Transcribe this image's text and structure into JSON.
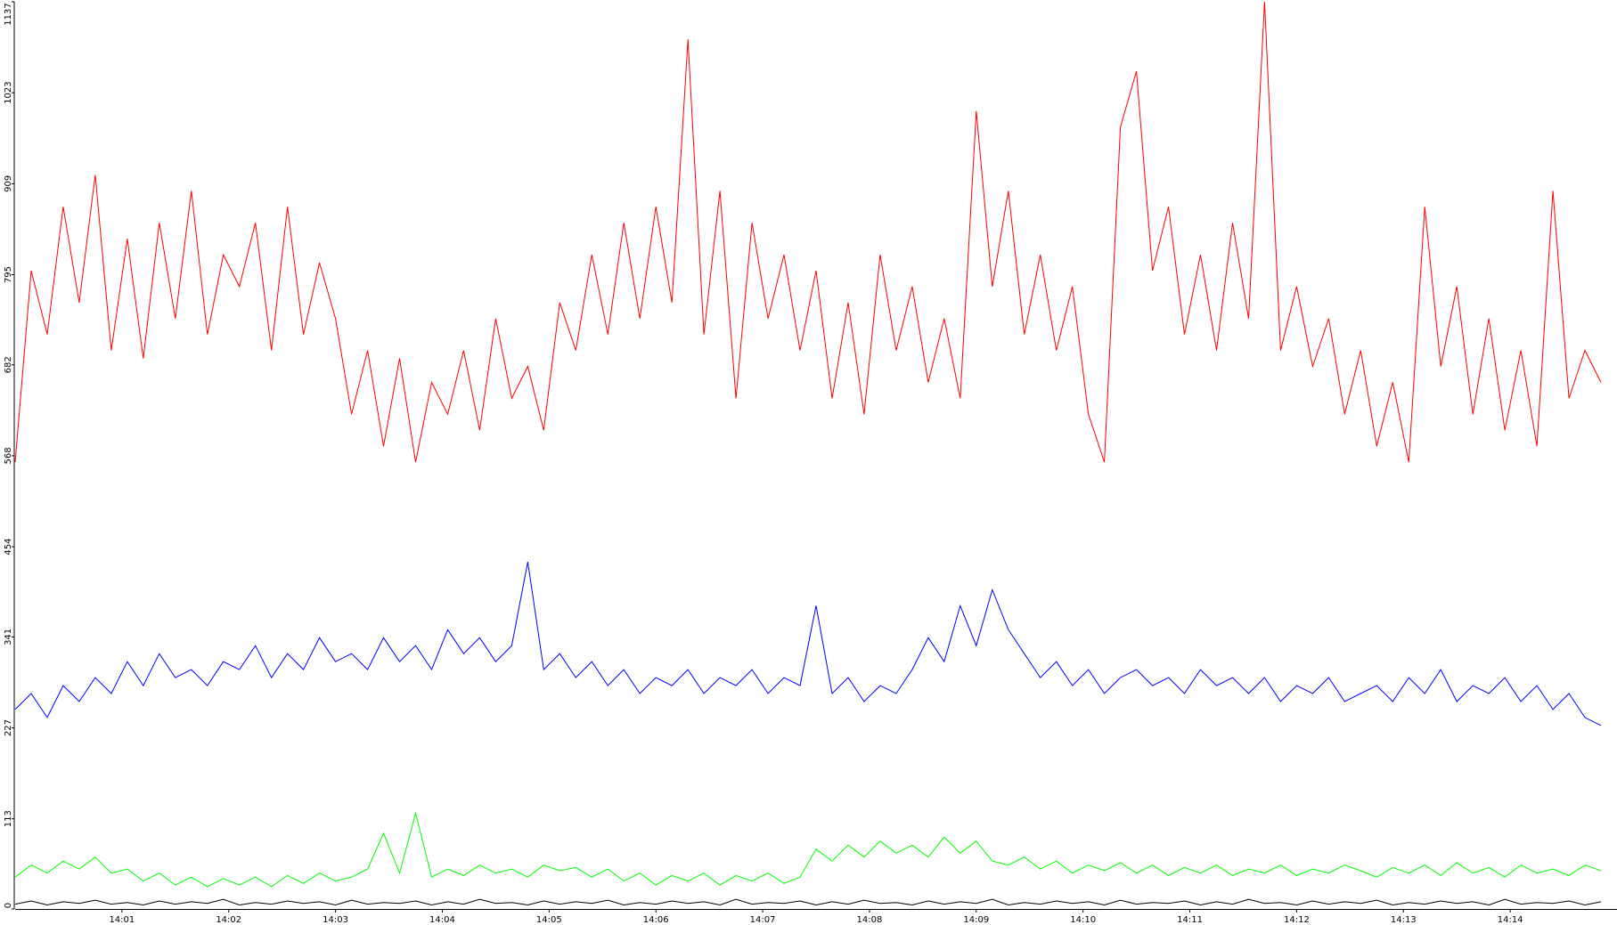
{
  "chart_data": {
    "type": "line",
    "x": [
      0,
      0.15,
      0.3,
      0.45,
      0.6,
      0.75,
      0.9,
      1.05,
      1.2,
      1.35,
      1.5,
      1.65,
      1.8,
      1.95,
      2.1,
      2.25,
      2.4,
      2.55,
      2.7,
      2.85,
      3,
      3.15,
      3.3,
      3.45,
      3.6,
      3.75,
      3.9,
      4.05,
      4.2,
      4.35,
      4.5,
      4.65,
      4.8,
      4.95,
      5.1,
      5.25,
      5.4,
      5.55,
      5.7,
      5.85,
      6,
      6.15,
      6.3,
      6.45,
      6.6,
      6.75,
      6.9,
      7.05,
      7.2,
      7.35,
      7.5,
      7.65,
      7.8,
      7.95,
      8.1,
      8.25,
      8.4,
      8.55,
      8.7,
      8.85,
      9,
      9.15,
      9.3,
      9.45,
      9.6,
      9.75,
      9.9,
      10.05,
      10.2,
      10.35,
      10.5,
      10.65,
      10.8,
      10.95,
      11.1,
      11.25,
      11.4,
      11.55,
      11.7,
      11.85,
      12,
      12.15,
      12.3,
      12.45,
      12.6,
      12.75,
      12.9,
      13.05,
      13.2,
      13.35,
      13.5,
      13.65,
      13.8,
      13.95,
      14.1,
      14.25,
      14.4,
      14.55,
      14.7,
      14.85
    ],
    "series": [
      {
        "color": "#ff0000",
        "values": [
          560,
          800,
          720,
          880,
          760,
          920,
          700,
          840,
          690,
          860,
          740,
          900,
          720,
          820,
          780,
          860,
          700,
          880,
          720,
          810,
          740,
          620,
          700,
          580,
          690,
          560,
          660,
          620,
          700,
          600,
          740,
          640,
          680,
          600,
          760,
          700,
          820,
          720,
          860,
          740,
          880,
          760,
          1090,
          720,
          900,
          640,
          860,
          740,
          820,
          700,
          800,
          640,
          760,
          620,
          820,
          700,
          780,
          660,
          740,
          640,
          1000,
          780,
          900,
          720,
          820,
          700,
          780,
          620,
          560,
          980,
          1050,
          800,
          880,
          720,
          820,
          700,
          860,
          740,
          1137,
          700,
          780,
          680,
          740,
          620,
          700,
          580,
          660,
          560,
          880,
          680,
          780,
          620,
          740,
          600,
          700,
          580,
          900,
          640,
          700,
          660
        ]
      },
      {
        "color": "#0000ff",
        "values": [
          250,
          270,
          240,
          280,
          260,
          290,
          270,
          310,
          280,
          320,
          290,
          300,
          280,
          310,
          300,
          330,
          290,
          320,
          300,
          340,
          310,
          320,
          300,
          340,
          310,
          330,
          300,
          350,
          320,
          340,
          310,
          330,
          435,
          300,
          320,
          290,
          310,
          280,
          300,
          270,
          290,
          280,
          300,
          270,
          290,
          280,
          300,
          270,
          290,
          280,
          380,
          270,
          290,
          260,
          280,
          270,
          300,
          340,
          310,
          380,
          330,
          400,
          350,
          320,
          290,
          310,
          280,
          300,
          270,
          290,
          300,
          280,
          290,
          270,
          300,
          280,
          290,
          270,
          290,
          260,
          280,
          270,
          290,
          260,
          270,
          280,
          260,
          290,
          270,
          300,
          260,
          280,
          270,
          290,
          260,
          280,
          250,
          270,
          240,
          230
        ]
      },
      {
        "color": "#00ff00",
        "values": [
          40,
          55,
          45,
          60,
          50,
          65,
          45,
          50,
          35,
          45,
          30,
          40,
          28,
          38,
          30,
          40,
          28,
          42,
          32,
          45,
          35,
          40,
          50,
          95,
          45,
          120,
          40,
          50,
          42,
          55,
          45,
          50,
          40,
          55,
          48,
          52,
          40,
          50,
          35,
          45,
          30,
          42,
          35,
          45,
          30,
          42,
          35,
          45,
          32,
          40,
          75,
          60,
          80,
          65,
          85,
          70,
          80,
          65,
          90,
          70,
          85,
          60,
          55,
          65,
          50,
          60,
          45,
          55,
          48,
          58,
          45,
          55,
          42,
          52,
          45,
          55,
          42,
          50,
          45,
          55,
          42,
          50,
          45,
          55,
          48,
          40,
          52,
          45,
          55,
          42,
          58,
          45,
          52,
          40,
          55,
          45,
          50,
          42,
          55,
          48
        ]
      },
      {
        "color": "#000000",
        "values": [
          6,
          10,
          5,
          9,
          7,
          11,
          6,
          8,
          5,
          10,
          6,
          9,
          7,
          12,
          5,
          8,
          6,
          10,
          7,
          9,
          5,
          11,
          6,
          8,
          7,
          10,
          5,
          9,
          6,
          12,
          7,
          8,
          5,
          10,
          6,
          9,
          7,
          11,
          5,
          8,
          6,
          10,
          7,
          9,
          5,
          12,
          6,
          8,
          7,
          10,
          5,
          9,
          6,
          11,
          7,
          8,
          5,
          10,
          6,
          9,
          7,
          12,
          5,
          8,
          6,
          10,
          7,
          9,
          5,
          11,
          6,
          8,
          7,
          10,
          5,
          9,
          6,
          12,
          7,
          8,
          5,
          10,
          6,
          9,
          7,
          11,
          5,
          8,
          6,
          10,
          7,
          9,
          5,
          12,
          6,
          8,
          7,
          10,
          5,
          9
        ]
      }
    ],
    "xlim": [
      0,
      15
    ],
    "xticks": [
      {
        "value": 1,
        "label": "14:01"
      },
      {
        "value": 2,
        "label": "14:02"
      },
      {
        "value": 3,
        "label": "14:03"
      },
      {
        "value": 4,
        "label": "14:04"
      },
      {
        "value": 5,
        "label": "14:05"
      },
      {
        "value": 6,
        "label": "14:06"
      },
      {
        "value": 7,
        "label": "14:07"
      },
      {
        "value": 8,
        "label": "14:08"
      },
      {
        "value": 9,
        "label": "14:09"
      },
      {
        "value": 10,
        "label": "14:10"
      },
      {
        "value": 11,
        "label": "14:11"
      },
      {
        "value": 12,
        "label": "14:12"
      },
      {
        "value": 13,
        "label": "14:13"
      },
      {
        "value": 14,
        "label": "14:14"
      }
    ],
    "ylim": [
      0,
      1137
    ],
    "yticks": [
      0,
      113,
      227,
      341,
      454,
      568,
      682,
      795,
      909,
      1023,
      1137
    ]
  }
}
